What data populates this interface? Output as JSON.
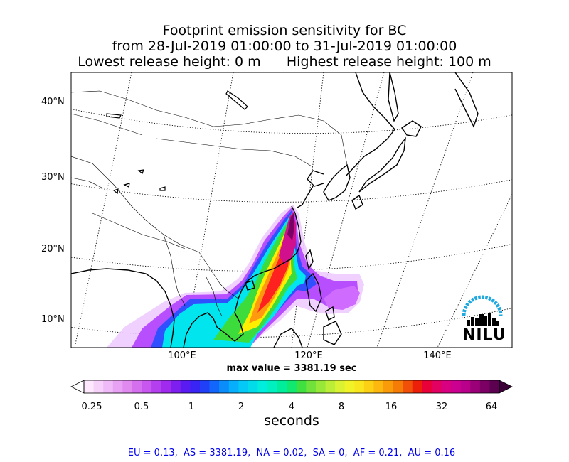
{
  "title": {
    "line1": "Footprint emission sensitivity for BC",
    "line2": "from 28-Jul-2019 01:00:00 to 31-Jul-2019 01:00:00",
    "line3": "Lowest release height: 0 m      Highest release height: 100 m"
  },
  "map": {
    "lat_labels": [
      "40°N",
      "30°N",
      "20°N",
      "10°N"
    ],
    "lon_labels": [
      "100°E",
      "120°E",
      "140°E"
    ],
    "max_value": "max value = 3381.19 sec",
    "logo_text": "NILU",
    "colors": {
      "logo_arc": "#1fa9e1",
      "plume_outer": "#e8b8ff",
      "plume_purple": "#9b30ff",
      "plume_cyan": "#00e5ee",
      "plume_green": "#3cdc3c",
      "plume_yellow": "#ffee00",
      "plume_red": "#ff2020",
      "plume_magenta": "#d0108c"
    }
  },
  "colorbar": {
    "tick_labels": [
      "0.25",
      "0.5",
      "1",
      "2",
      "4",
      "8",
      "16",
      "32",
      "64"
    ],
    "units": "seconds",
    "colors": [
      "#fde8fd",
      "#f6d2fb",
      "#efbaf7",
      "#e8a2f3",
      "#e08af0",
      "#d46fee",
      "#c757ee",
      "#b43fee",
      "#a02bee",
      "#7e1ff0",
      "#5a1af2",
      "#3a23f5",
      "#2040f8",
      "#1266fb",
      "#0a8cfb",
      "#06aefb",
      "#04c8f5",
      "#02dcea",
      "#00eedd",
      "#00f0bf",
      "#00ee9b",
      "#10e870",
      "#40e040",
      "#70e23a",
      "#98e83a",
      "#bcee38",
      "#daf232",
      "#f2f228",
      "#fae61e",
      "#fcd014",
      "#fcb80e",
      "#fa9c0a",
      "#f67c08",
      "#f05008",
      "#ec200a",
      "#e80038",
      "#e20060",
      "#d80080",
      "#cc0090",
      "#b8008a",
      "#9c0078",
      "#7c0064",
      "#5c0050"
    ]
  },
  "footer": "EU = 0.13,  AS = 3381.19,  NA = 0.02,  SA = 0,  AF = 0.21,  AU = 0.16"
}
